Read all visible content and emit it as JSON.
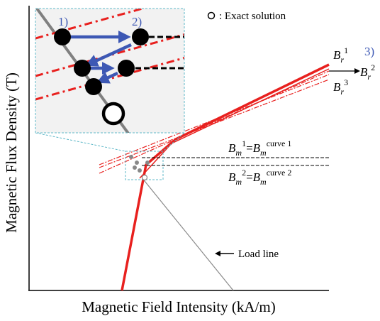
{
  "labels": {
    "y_axis": "Magnetic Flux Density (T)",
    "x_axis": "Magnetic Field Intensity (kA/m)",
    "legend_exact": ": Exact solution",
    "load_line": "Load line",
    "step_1": "1)",
    "step_2": "2)",
    "step_3": "3)",
    "br1": {
      "base": "B",
      "sub": "r",
      "sup": "1"
    },
    "br2": {
      "base": "B",
      "sub": "r",
      "sup": "2"
    },
    "br3": {
      "base": "B",
      "sub": "r",
      "sup": "3"
    },
    "bm1": {
      "base": "B",
      "sub": "m",
      "sup": "1",
      "eq": "=",
      "base2": "B",
      "sub2": "m",
      "sup2": "curve 1"
    },
    "bm2": {
      "base": "B",
      "sub": "m",
      "sup": "2",
      "eq": "=",
      "base2": "B",
      "sub2": "m",
      "sup2": "curve 2"
    }
  },
  "colors": {
    "curve": "#e8201e",
    "step_arrow": "#3d58b4",
    "step_text": "#3d58b4",
    "load_line": "#808080",
    "inset_bg": "#f2f2f2",
    "inset_border": "#5fb8c8"
  }
}
